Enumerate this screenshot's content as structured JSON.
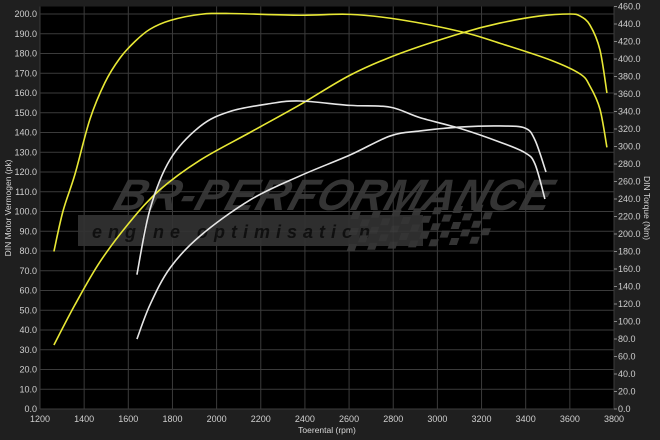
{
  "logo": {
    "title": "BR-Performance",
    "subtitle": "engine optimisation"
  },
  "chart_data": {
    "type": "line",
    "xlabel": "Toerental (rpm)",
    "ylabel": "DIN Motor Vermogen (pk)",
    "y2label": "DIN Torque (Nm)",
    "xlim": [
      1200,
      3800
    ],
    "ylim": [
      0,
      203.8
    ],
    "y2lim": [
      0,
      460
    ],
    "xticks": [
      1200,
      1400,
      1600,
      1800,
      2000,
      2200,
      2400,
      2600,
      2800,
      3000,
      3200,
      3400,
      3600,
      3800
    ],
    "yticks": [
      0,
      10,
      20,
      30,
      40,
      50,
      60,
      70,
      80,
      90,
      100,
      110,
      120,
      130,
      140,
      150,
      160,
      170,
      180,
      190,
      200
    ],
    "y2ticks": [
      0,
      20,
      40,
      60,
      80,
      100,
      120,
      140,
      160,
      180,
      200,
      220,
      240,
      260,
      280,
      300,
      320,
      340,
      360,
      380,
      400,
      420,
      440,
      460
    ],
    "grid": true,
    "background": "#000000",
    "series": [
      {
        "axis": "right",
        "color": "#e8e835",
        "x": [
          1263,
          1304,
          1358,
          1426,
          1494,
          1562,
          1630,
          1698,
          1789,
          1925,
          2060,
          2377,
          2604,
          2830,
          3111,
          3283,
          3510,
          3646,
          3691,
          3736,
          3768
        ],
        "y": [
          180,
          226,
          268,
          331,
          373,
          401,
          420,
          434,
          444,
          451,
          452,
          450,
          451,
          445,
          431,
          418,
          399,
          383,
          369,
          343,
          299
        ]
      },
      {
        "axis": "left",
        "color": "#e8e835",
        "x": [
          1263,
          1358,
          1471,
          1607,
          1743,
          1925,
          2151,
          2377,
          2604,
          2830,
          3111,
          3283,
          3465,
          3600,
          3646,
          3691,
          3736,
          3768
        ],
        "y": [
          32.4,
          52.7,
          74.4,
          94.7,
          111,
          126,
          140,
          154,
          169,
          180,
          190.4,
          195.4,
          199,
          200,
          199,
          194.4,
          182,
          160
        ]
      },
      {
        "axis": "right",
        "color": "#e6e6e6",
        "x": [
          1639,
          1698,
          1789,
          1925,
          2060,
          2242,
          2377,
          2604,
          2785,
          2921,
          3111,
          3283,
          3396,
          3442,
          3487
        ],
        "y": [
          153.5,
          228,
          285,
          323,
          340,
          349,
          352,
          347,
          345,
          333,
          320,
          305,
          293,
          280,
          240
        ]
      },
      {
        "axis": "left",
        "color": "#e6e6e6",
        "x": [
          1639,
          1698,
          1789,
          1925,
          2151,
          2377,
          2604,
          2785,
          2921,
          3111,
          3283,
          3396,
          3442,
          3492
        ],
        "y": [
          35.4,
          52.7,
          71.4,
          87.6,
          105.8,
          118,
          128.6,
          138.2,
          140.8,
          142.8,
          143.3,
          142.3,
          136.2,
          120
        ]
      }
    ]
  }
}
